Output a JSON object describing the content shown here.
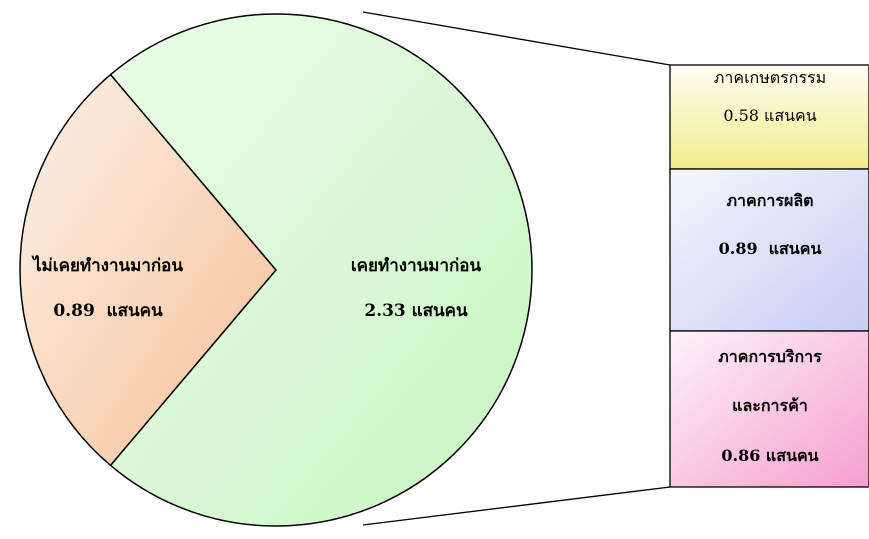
{
  "chart_data": {
    "type": "pie",
    "title": "",
    "unit": "แสนคน",
    "slices": [
      {
        "label": "ไม่เคยทำงานมาก่อน",
        "value": 0.89,
        "value_text": "0.89  แสนคน",
        "color": "#f7c7a0"
      },
      {
        "label": "เคยทำงานมาก่อน",
        "value": 2.33,
        "value_text": "2.33 แสนคน",
        "color": "#d8f8d0"
      }
    ],
    "breakdown_of": "เคยทำงานมาก่อน",
    "breakdown": [
      {
        "label_lines": [
          "ภาคเกษตรกรรม"
        ],
        "value": 0.58,
        "value_text": "0.58 แสนคน",
        "color": "#f3f096"
      },
      {
        "label_lines": [
          "ภาคการผลิต"
        ],
        "value": 0.89,
        "value_text": "0.89  แสนคน",
        "color": "#d2d6f5"
      },
      {
        "label_lines": [
          "ภาคการบริการ",
          "และการค้า"
        ],
        "value": 0.86,
        "value_text": "0.86 แสนคน",
        "color": "#f7b6d8"
      }
    ]
  }
}
